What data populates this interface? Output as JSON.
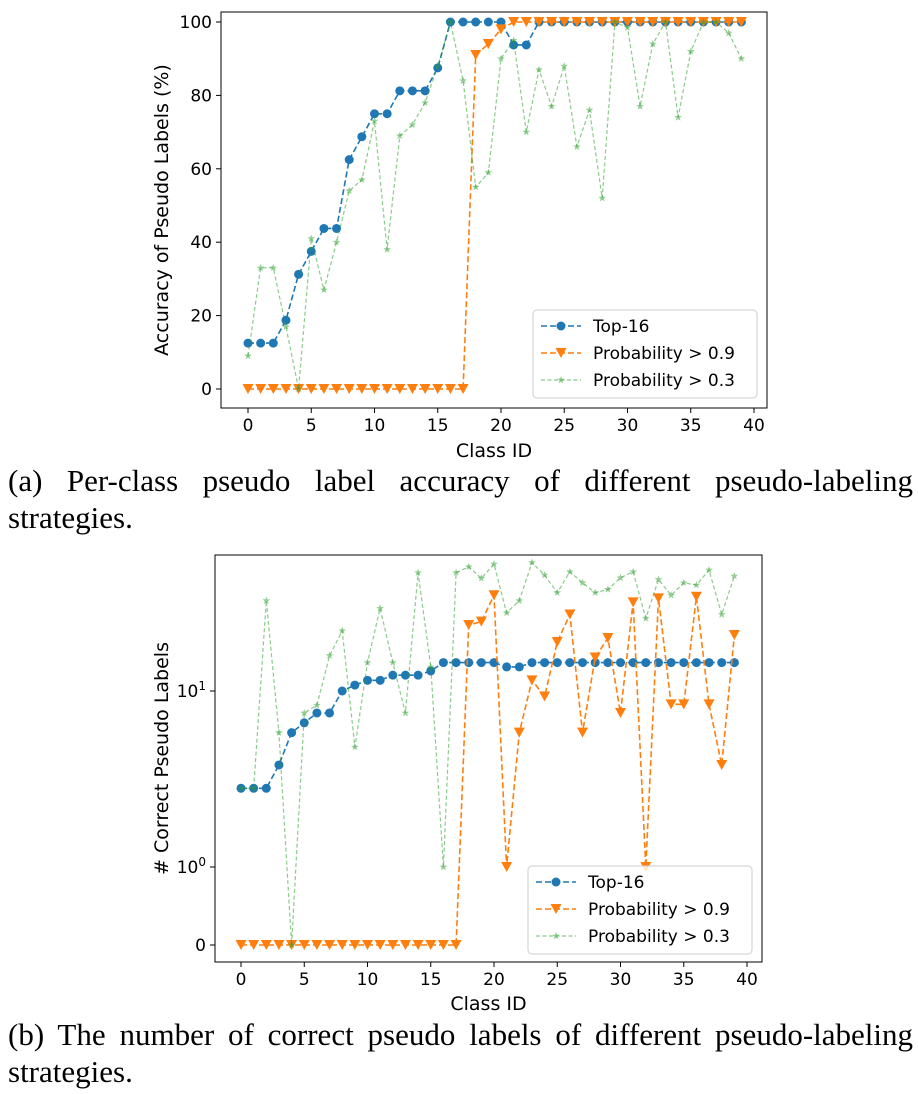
{
  "chart_data": [
    {
      "type": "line",
      "xlabel": "Class ID",
      "ylabel": "Accuracy of Pseudo Labels (%)",
      "xlim": [
        -1.5,
        40.5
      ],
      "ylim": [
        -5,
        102
      ],
      "xticks": [
        0,
        5,
        10,
        15,
        20,
        25,
        30,
        35,
        40
      ],
      "yticks": [
        0,
        20,
        40,
        60,
        80,
        100
      ],
      "legend": "lower-right",
      "grid": false,
      "x": [
        0,
        1,
        2,
        3,
        4,
        5,
        6,
        7,
        8,
        9,
        10,
        11,
        12,
        13,
        14,
        15,
        16,
        17,
        18,
        19,
        20,
        21,
        22,
        23,
        24,
        25,
        26,
        27,
        28,
        29,
        30,
        31,
        32,
        33,
        34,
        35,
        36,
        37,
        38,
        39
      ],
      "series": [
        {
          "name": "Top-16",
          "color": "#1f77b4",
          "marker": "circle",
          "values": [
            12.5,
            12.5,
            12.5,
            18.75,
            31.25,
            37.5,
            43.75,
            43.75,
            62.5,
            68.75,
            75,
            75,
            81.25,
            81.25,
            81.25,
            87.5,
            100,
            100,
            100,
            100,
            100,
            93.75,
            93.75,
            100,
            100,
            100,
            100,
            100,
            100,
            100,
            100,
            100,
            100,
            100,
            100,
            100,
            100,
            100,
            100,
            100
          ]
        },
        {
          "name": "Probability > 0.9",
          "color": "#ff7f0e",
          "marker": "triangle-down",
          "values": [
            0,
            0,
            0,
            0,
            0,
            0,
            0,
            0,
            0,
            0,
            0,
            0,
            0,
            0,
            0,
            0,
            0,
            0,
            91,
            94,
            98,
            100,
            100,
            100,
            100,
            100,
            100,
            100,
            100,
            100,
            100,
            100,
            100,
            100,
            100,
            100,
            100,
            100,
            100,
            100
          ]
        },
        {
          "name": "Probability > 0.3",
          "color": "#2ca02c",
          "marker": "star",
          "values": [
            9,
            33,
            33,
            17,
            0,
            41,
            27,
            40,
            54,
            57,
            73,
            38,
            69,
            72,
            78,
            88,
            100,
            84,
            55,
            59,
            90,
            95,
            70,
            87,
            77,
            88,
            66,
            76,
            52,
            100,
            98.5,
            77,
            94,
            100,
            74,
            92,
            100,
            100,
            97,
            90
          ]
        }
      ]
    },
    {
      "type": "line",
      "xlabel": "Class ID",
      "ylabel": "# Correct Pseudo Labels",
      "yscale": "symlog",
      "xlim": [
        -1.5,
        40.5
      ],
      "xticks": [
        0,
        5,
        10,
        15,
        20,
        25,
        30,
        35,
        40
      ],
      "yticks": [
        {
          "value": 0,
          "label": "0"
        },
        {
          "value": 1,
          "label": "10^0"
        },
        {
          "value": 10,
          "label": "10^1"
        }
      ],
      "legend": "lower-right",
      "grid": false,
      "x": [
        0,
        1,
        2,
        3,
        4,
        5,
        6,
        7,
        8,
        9,
        10,
        11,
        12,
        13,
        14,
        15,
        16,
        17,
        18,
        19,
        20,
        21,
        22,
        23,
        24,
        25,
        26,
        27,
        28,
        29,
        30,
        31,
        32,
        33,
        34,
        35,
        36,
        37,
        38,
        39
      ],
      "series": [
        {
          "name": "Top-16",
          "color": "#1f77b4",
          "marker": "circle",
          "values": [
            2.8,
            2.8,
            2.8,
            3.8,
            5.8,
            6.6,
            7.5,
            7.5,
            10,
            10.8,
            11.5,
            11.5,
            12.3,
            12.3,
            12.3,
            13,
            14.5,
            14.5,
            14.5,
            14.5,
            14.5,
            13.7,
            13.7,
            14.5,
            14.5,
            14.5,
            14.5,
            14.5,
            14.5,
            14.5,
            14.5,
            14.5,
            14.5,
            14.5,
            14.5,
            14.5,
            14.5,
            14.5,
            14.5,
            14.5
          ]
        },
        {
          "name": "Probability > 0.9",
          "color": "#ff7f0e",
          "marker": "triangle-down",
          "values": [
            0,
            0,
            0,
            0,
            0,
            0,
            0,
            0,
            0,
            0,
            0,
            0,
            0,
            0,
            0,
            0,
            0,
            0,
            23.7,
            24.8,
            35,
            1,
            5.8,
            11.5,
            9.3,
            19,
            27.2,
            5.8,
            15.5,
            20,
            7.5,
            31.9,
            1,
            33.6,
            8.4,
            8.4,
            34.3,
            8.4,
            3.8,
            20.8
          ]
        },
        {
          "name": "Probability > 0.3",
          "color": "#2ca02c",
          "marker": "star",
          "values": [
            2.8,
            2.8,
            32.6,
            5.8,
            0,
            7.5,
            8.3,
            15.9,
            22,
            4.8,
            14.5,
            29.5,
            14.5,
            7.5,
            47,
            13.7,
            1,
            47,
            50.8,
            43.7,
            52.6,
            27.8,
            32.6,
            53.7,
            45.6,
            36.2,
            47.6,
            41.2,
            36.2,
            37.8,
            44,
            47.6,
            25.9,
            43,
            35,
            41.2,
            40,
            48.7,
            27.2,
            45
          ]
        }
      ]
    }
  ],
  "captions": {
    "a": "(a) Per-class pseudo label accuracy of different pseudo-labeling strategies.",
    "b": "(b) The number of correct pseudo labels of different pseudo-labeling strategies."
  }
}
